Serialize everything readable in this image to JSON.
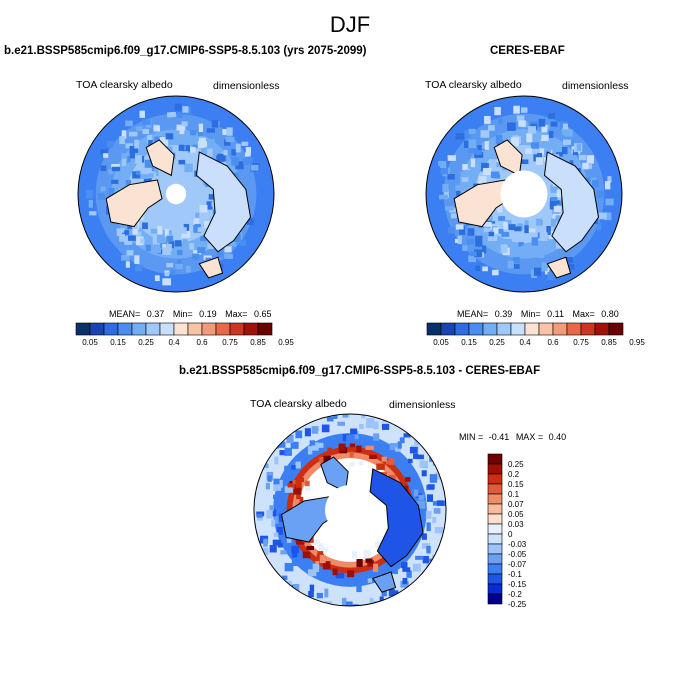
{
  "title": "DJF",
  "colors": {
    "abs_scale": [
      "#08306b",
      "#1845b0",
      "#2c6de0",
      "#4a8ff0",
      "#73aef5",
      "#a0c9fa",
      "#c9dffc",
      "#fbe3d4",
      "#f9c3a6",
      "#f39a78",
      "#e46a48",
      "#c8371e",
      "#9e1309",
      "#6b0000"
    ],
    "diff_scale": [
      "#00008b",
      "#0a2ccc",
      "#1f55e6",
      "#3c7ff2",
      "#6ba1f5",
      "#9dc3fb",
      "#cfe2fc",
      "#e7f1fd",
      "#fbdfcf",
      "#f8bb9d",
      "#f18a66",
      "#e25b38",
      "#cc2e12",
      "#9e1005",
      "#6e0000"
    ],
    "ice_hole": "#ffffff",
    "coast": "#000000"
  },
  "panels": {
    "model": {
      "title": "b.e21.BSSP585cmip6.f09_g17.CMIP6-SSP5-8.5.103 (yrs 2075-2099)",
      "left_label": "TOA clearsky albedo",
      "right_label": "dimensionless",
      "mean_label": "MEAN=",
      "mean": "0.37",
      "min_label": "Min=",
      "min": "0.19",
      "max_label": "Max=",
      "max": "0.65"
    },
    "obs": {
      "title": "CERES-EBAF",
      "left_label": "TOA clearsky albedo",
      "right_label": "dimensionless",
      "mean_label": "MEAN=",
      "mean": "0.39",
      "min_label": "Min=",
      "min": "0.11",
      "max_label": "Max=",
      "max": "0.80"
    },
    "diff": {
      "title": "b.e21.BSSP585cmip6.f09_g17.CMIP6-SSP5-8.5.103 - CERES-EBAF",
      "left_label": "TOA clearsky albedo",
      "right_label": "dimensionless",
      "min_label": "MIN =",
      "min": "-0.41",
      "max_label": "MAX =",
      "max": "0.40"
    }
  },
  "chart_data": [
    {
      "type": "heatmap",
      "projection": "north polar stereographic",
      "title": "b.e21.BSSP585cmip6.f09_g17.CMIP6-SSP5-8.5.103 (yrs 2075-2099)",
      "variable": "TOA clearsky albedo",
      "units": "dimensionless",
      "mean": 0.37,
      "min": 0.19,
      "max": 0.65,
      "colorbar_levels": [
        0.05,
        0.1,
        0.15,
        0.2,
        0.25,
        0.3,
        0.4,
        0.5,
        0.6,
        0.7,
        0.75,
        0.8,
        0.85,
        0.9,
        0.95
      ],
      "colorbar_tick_labels": [
        "0.05",
        "0.15",
        "0.25",
        "0.4",
        "0.6",
        "0.75",
        "0.85",
        "0.95"
      ],
      "features": {
        "polar_ice_hole_fraction": 0.2,
        "land_albedo_range": [
          0.5,
          0.65
        ],
        "ocean_albedo_range": [
          0.2,
          0.3
        ]
      }
    },
    {
      "type": "heatmap",
      "projection": "north polar stereographic",
      "title": "CERES-EBAF",
      "variable": "TOA clearsky albedo",
      "units": "dimensionless",
      "mean": 0.39,
      "min": 0.11,
      "max": 0.8,
      "colorbar_levels": [
        0.05,
        0.1,
        0.15,
        0.2,
        0.25,
        0.3,
        0.4,
        0.5,
        0.6,
        0.7,
        0.75,
        0.8,
        0.85,
        0.9,
        0.95
      ],
      "colorbar_tick_labels": [
        "0.05",
        "0.15",
        "0.25",
        "0.4",
        "0.6",
        "0.75",
        "0.85",
        "0.95"
      ],
      "features": {
        "polar_ice_hole_fraction": 0.46,
        "land_albedo_range": [
          0.45,
          0.7
        ],
        "ocean_albedo_range": [
          0.15,
          0.3
        ]
      }
    },
    {
      "type": "heatmap",
      "projection": "north polar stereographic",
      "title": "b.e21.BSSP585cmip6.f09_g17.CMIP6-SSP5-8.5.103 - CERES-EBAF",
      "variable": "TOA clearsky albedo",
      "units": "dimensionless",
      "min": -0.41,
      "max": 0.4,
      "colorbar_levels": [
        -0.25,
        -0.2,
        -0.15,
        -0.1,
        -0.07,
        -0.05,
        -0.03,
        0,
        0.03,
        0.05,
        0.07,
        0.1,
        0.15,
        0.2,
        0.25
      ],
      "colorbar_tick_labels": [
        "0.25",
        "0.2",
        "0.15",
        "0.1",
        "0.07",
        "0.05",
        "0.03",
        "0",
        "-0.03",
        "-0.05",
        "-0.07",
        "-0.1",
        "-0.15",
        "-0.2",
        "-0.25"
      ],
      "features": {
        "polar_ice_hole_fraction": 0.5,
        "positive_ring_fraction": [
          0.5,
          0.66
        ]
      }
    }
  ]
}
